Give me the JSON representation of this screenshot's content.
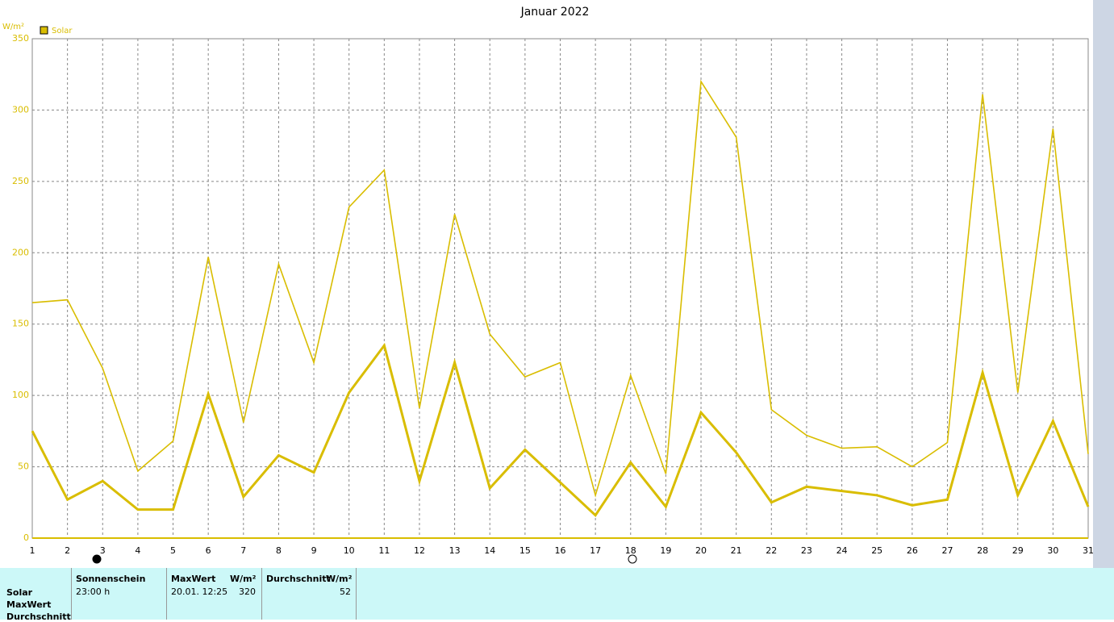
{
  "chart_data": {
    "type": "line",
    "title": "Januar 2022",
    "y_label": "W/m²",
    "x": [
      1,
      2,
      3,
      4,
      5,
      6,
      7,
      8,
      9,
      10,
      11,
      12,
      13,
      14,
      15,
      16,
      17,
      18,
      19,
      20,
      21,
      22,
      23,
      24,
      25,
      26,
      27,
      28,
      29,
      30,
      31
    ],
    "xlim": [
      1,
      31
    ],
    "xticks": [
      1,
      2,
      3,
      4,
      5,
      6,
      7,
      8,
      9,
      10,
      11,
      12,
      13,
      14,
      15,
      16,
      17,
      18,
      19,
      20,
      21,
      22,
      23,
      24,
      25,
      26,
      27,
      28,
      29,
      30,
      31
    ],
    "ylim": [
      0,
      350
    ],
    "yticks": [
      0,
      50,
      100,
      150,
      200,
      250,
      300,
      350
    ],
    "grid": true,
    "series": [
      {
        "name": "Solar",
        "color": "#d9bd00",
        "width": 3,
        "values": [
          75,
          27,
          40,
          20,
          20,
          101,
          29,
          58,
          46,
          102,
          135,
          40,
          123,
          35,
          62,
          39,
          16,
          53,
          22,
          88,
          60,
          25,
          36,
          33,
          30,
          23,
          27,
          116,
          30,
          82,
          22
        ]
      },
      {
        "color": "#d9bd00",
        "width": 1.6,
        "values": [
          165,
          167,
          119,
          47,
          68,
          197,
          81,
          192,
          123,
          232,
          258,
          91,
          227,
          143,
          113,
          123,
          30,
          114,
          45,
          320,
          281,
          90,
          72,
          63,
          64,
          50,
          67,
          311,
          102,
          287,
          59
        ]
      }
    ]
  },
  "panel": {
    "row_labels": [
      "Solar",
      "MaxWert",
      "Durchschnitt"
    ],
    "sunshine": {
      "header": "Sonnenschein",
      "value": "23:00 h"
    },
    "max": {
      "header": "MaxWert",
      "unit": "W/m²",
      "time": "20.01.  12:25",
      "value": "320"
    },
    "avg": {
      "header": "Durchschnitt",
      "unit": "W/m²",
      "value": "52"
    }
  }
}
